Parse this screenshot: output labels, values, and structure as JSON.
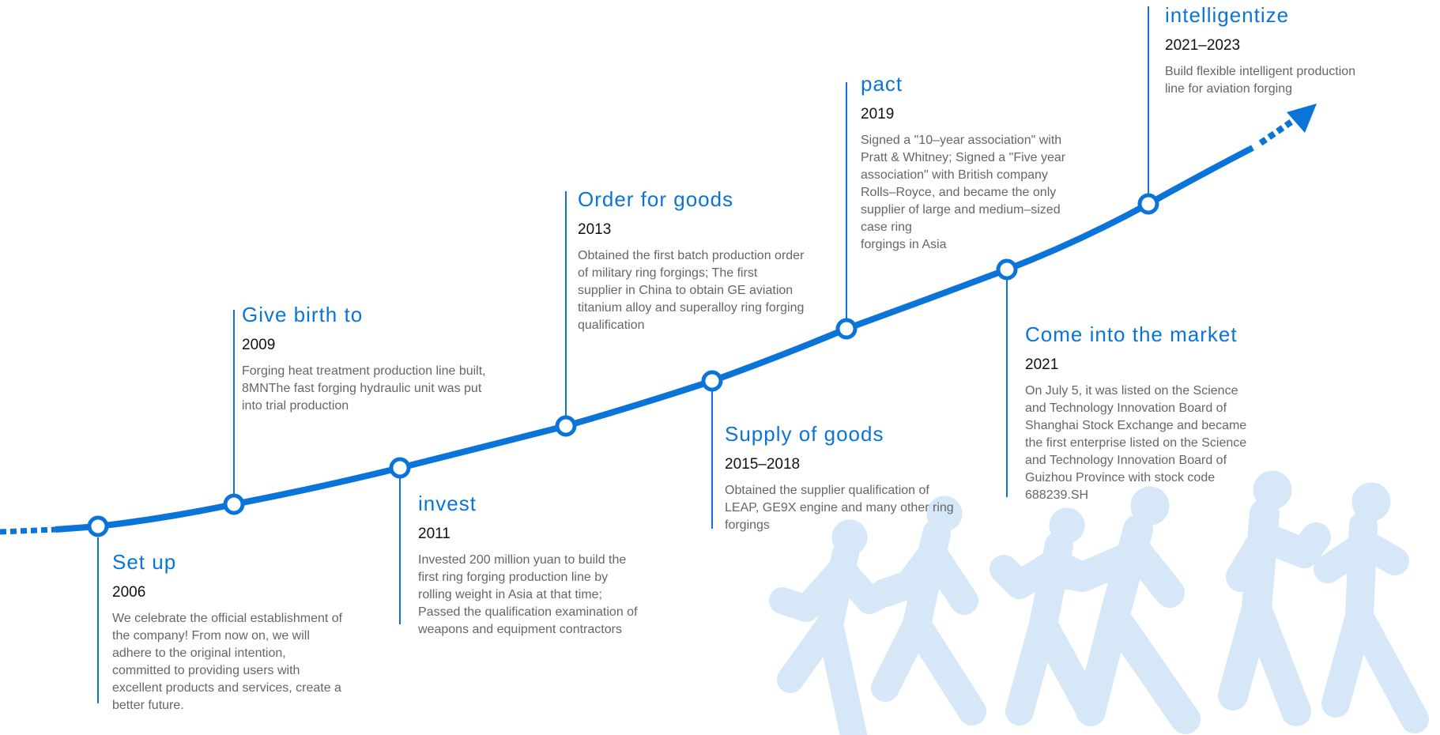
{
  "colors": {
    "accent": "#0a74d8",
    "runners": "#d6e7f8"
  },
  "milestones": [
    {
      "title": "Set up",
      "year": "2006",
      "desc": "We celebrate the official establishment of\nthe company! From now on, we will\nadhere to the original intention,\ncommitted to providing users with\nexcellent products and services, create a\nbetter future."
    },
    {
      "title": "Give birth to",
      "year": "2009",
      "desc": "Forging heat treatment production line built,\n8MNThe fast forging hydraulic unit was put\ninto trial production"
    },
    {
      "title": "invest",
      "year": "2011",
      "desc": "Invested 200 million yuan to build the\nfirst ring forging production line by\nrolling weight in Asia at that time;\nPassed the qualification examination of\nweapons and equipment contractors"
    },
    {
      "title": "Order for goods",
      "year": "2013",
      "desc": "Obtained the first batch production order\nof military ring forgings; The first\nsupplier in China to obtain GE aviation\ntitanium alloy and superalloy ring forging\n qualification"
    },
    {
      "title": "Supply of goods",
      "year": "2015–2018",
      "desc": "Obtained the supplier qualification of\nLEAP, GE9X engine and many other ring\nforgings"
    },
    {
      "title": "pact",
      "year": "2019",
      "desc": "Signed a \"10–year association\" with\nPratt & Whitney; Signed a \"Five year\nassociation\" with British company\nRolls–Royce, and became the only\nsupplier of large and medium–sized\ncase ring\nforgings in Asia"
    },
    {
      "title": "Come into the market",
      "year": "2021",
      "desc": "On July 5, it was listed on the Science\nand Technology Innovation Board of\nShanghai Stock Exchange and became\nthe first enterprise listed on the Science\nand Technology Innovation Board of\nGuizhou Province with stock code\n688239.SH"
    },
    {
      "title": "intelligentize",
      "year": "2021–2023",
      "desc": "Build flexible intelligent production\nline for aviation forging"
    }
  ]
}
